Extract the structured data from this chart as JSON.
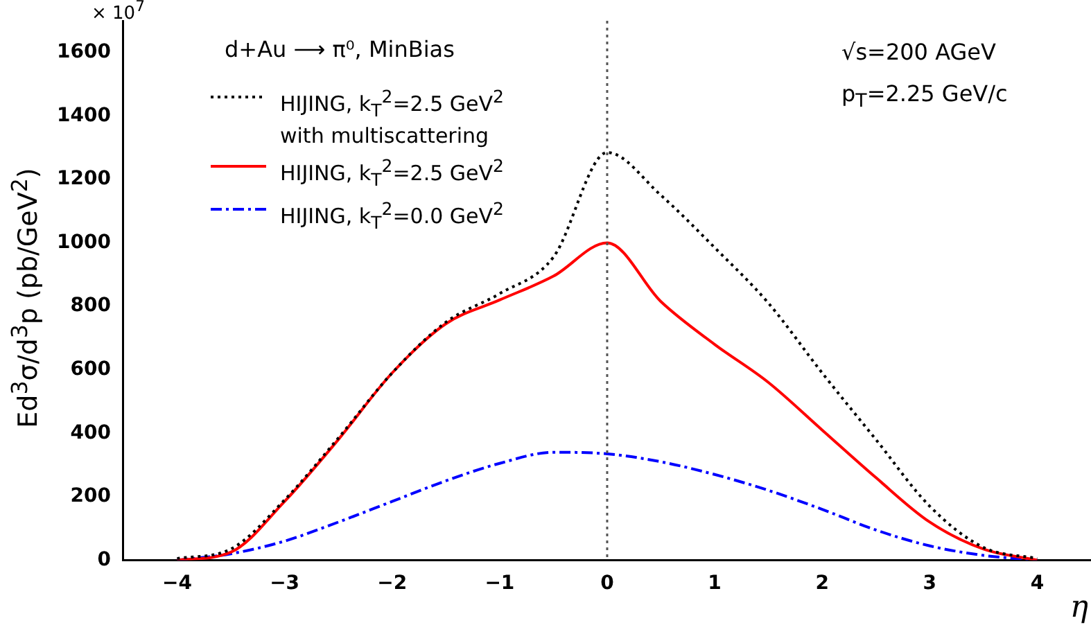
{
  "chart_data": {
    "type": "line",
    "title": "d+Au ⟶ π⁰, MinBias",
    "xlabel": "η",
    "ylabel": "Ed$^{3}$σ/d$^{3}$p (pb/GeV$^{2}$)",
    "annotations": [
      "× 10$^{7}$",
      "√s=200 AGeV",
      "p$_{T}$=2.25 GeV/c"
    ],
    "x": [
      -4,
      -3.5,
      -3,
      -2.5,
      -2,
      -1.5,
      -1,
      -0.5,
      0,
      0.5,
      1,
      1.5,
      2,
      2.5,
      3,
      3.5,
      4
    ],
    "series": [
      {
        "name": "HIJING, k$_{T}$$^{2}$=2.5 GeV$^{2}$ with multiscattering",
        "color": "#000000",
        "line_style": "dotted",
        "values": [
          5,
          35,
          190,
          385,
          590,
          750,
          840,
          955,
          1285,
          1150,
          985,
          810,
          590,
          380,
          170,
          40,
          5
        ]
      },
      {
        "name": "HIJING, k$_{T}$$^{2}$=2.5 GeV$^{2}$",
        "color": "#ff0000",
        "line_style": "solid",
        "values": [
          0,
          25,
          185,
          380,
          590,
          745,
          820,
          895,
          1000,
          815,
          680,
          560,
          410,
          260,
          120,
          35,
          0
        ]
      },
      {
        "name": "HIJING, k$_{T}$$^{2}$=0.0 GeV$^{2}$",
        "color": "#0000ff",
        "line_style": "dashed",
        "values": [
          0,
          20,
          60,
          120,
          185,
          250,
          305,
          340,
          335,
          310,
          270,
          220,
          160,
          95,
          45,
          15,
          0
        ]
      }
    ],
    "xlim": [
      -4.5,
      4.5
    ],
    "ylim": [
      0,
      1700
    ],
    "xticks": [
      -4,
      -3,
      -2,
      -1,
      0,
      1,
      2,
      3,
      4
    ],
    "yticks": [
      0,
      200,
      400,
      600,
      800,
      1000,
      1200,
      1400,
      1600
    ],
    "ref_lines": [
      {
        "axis": "x",
        "value": 0,
        "color": "#555555",
        "line_style": "dotted"
      }
    ],
    "grid": false,
    "legend": "top left",
    "marker": "none"
  }
}
